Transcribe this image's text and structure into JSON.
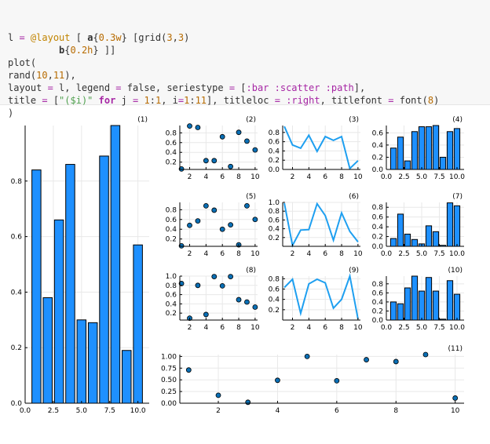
{
  "code": {
    "lines": [
      [
        {
          "t": "l "
        },
        {
          "t": "=",
          "c": "op"
        },
        {
          "t": " "
        },
        {
          "t": "@layout",
          "c": "macro"
        },
        {
          "t": " [ "
        },
        {
          "t": "a",
          "c": "bold"
        },
        {
          "t": "{"
        },
        {
          "t": "0.3w",
          "c": "num"
        },
        {
          "t": "} [grid("
        },
        {
          "t": "3",
          "c": "num"
        },
        {
          "t": ","
        },
        {
          "t": "3",
          "c": "num"
        },
        {
          "t": ")"
        }
      ],
      [
        {
          "t": "         "
        },
        {
          "t": "b",
          "c": "bold"
        },
        {
          "t": "{"
        },
        {
          "t": "0.2h",
          "c": "num"
        },
        {
          "t": "} ]]"
        }
      ],
      [
        {
          "t": "plot("
        }
      ],
      [
        {
          "t": "rand("
        },
        {
          "t": "10",
          "c": "num"
        },
        {
          "t": ","
        },
        {
          "t": "11",
          "c": "num"
        },
        {
          "t": "),"
        }
      ],
      [
        {
          "t": "layout "
        },
        {
          "t": "=",
          "c": "op"
        },
        {
          "t": " l, legend "
        },
        {
          "t": "=",
          "c": "op"
        },
        {
          "t": " false, seriestype "
        },
        {
          "t": "=",
          "c": "op"
        },
        {
          "t": " ["
        },
        {
          "t": ":bar :scatter :path",
          "c": "sym"
        },
        {
          "t": "],"
        }
      ],
      [
        {
          "t": "title "
        },
        {
          "t": "=",
          "c": "op"
        },
        {
          "t": " ["
        },
        {
          "t": "\"($i)\"",
          "c": "str"
        },
        {
          "t": " "
        },
        {
          "t": "for",
          "c": "kw"
        },
        {
          "t": " j "
        },
        {
          "t": "=",
          "c": "op"
        },
        {
          "t": " "
        },
        {
          "t": "1",
          "c": "num"
        },
        {
          "t": ":"
        },
        {
          "t": "1",
          "c": "num"
        },
        {
          "t": ", i"
        },
        {
          "t": "=",
          "c": "op"
        },
        {
          "t": "1",
          "c": "num"
        },
        {
          "t": ":"
        },
        {
          "t": "11",
          "c": "num"
        },
        {
          "t": "], titleloc "
        },
        {
          "t": "=",
          "c": "op"
        },
        {
          "t": " "
        },
        {
          "t": ":right",
          "c": "sym"
        },
        {
          "t": ", titlefont "
        },
        {
          "t": "=",
          "c": "op"
        },
        {
          "t": " font("
        },
        {
          "t": "8",
          "c": "num"
        },
        {
          "t": ")"
        }
      ],
      [
        {
          "t": ")"
        }
      ]
    ]
  },
  "colors": {
    "bar": "#1e90ff",
    "bar_stroke": "#000000",
    "line": "#1e9ff0",
    "marker": "#0a6fb5",
    "axis": "#000000",
    "grid": "#e8e8e8",
    "text": "#000000"
  },
  "chart_data": [
    {
      "title": "(1)",
      "type": "bar",
      "xlim": [
        0,
        11
      ],
      "ylim": [
        0,
        1
      ],
      "xticks": [
        "0.0",
        "2.5",
        "5.0",
        "7.5",
        "10.0"
      ],
      "xtick_values": [
        0,
        2.5,
        5,
        7.5,
        10
      ],
      "yticks": [
        "0.0",
        "0.2",
        "0.4",
        "0.6",
        "0.8"
      ],
      "ytick_values": [
        0,
        0.2,
        0.4,
        0.6,
        0.8
      ],
      "x": [
        1,
        2,
        3,
        4,
        5,
        6,
        7,
        8,
        9,
        10
      ],
      "values": [
        0.84,
        0.38,
        0.66,
        0.86,
        0.3,
        0.29,
        0.89,
        1.0,
        0.19,
        0.57
      ]
    },
    {
      "title": "(2)",
      "type": "scatter",
      "xlim": [
        0.8,
        10.3
      ],
      "ylim": [
        0.05,
        0.95
      ],
      "xticks": [
        "2",
        "4",
        "6",
        "8",
        "10"
      ],
      "xtick_values": [
        2,
        4,
        6,
        8,
        10
      ],
      "yticks": [
        "0.2",
        "0.4",
        "0.6",
        "0.8"
      ],
      "ytick_values": [
        0.2,
        0.4,
        0.6,
        0.8
      ],
      "x": [
        1,
        2,
        3,
        4,
        5,
        6,
        7,
        8,
        9,
        10
      ],
      "values": [
        0.06,
        0.94,
        0.91,
        0.23,
        0.23,
        0.72,
        0.11,
        0.81,
        0.63,
        0.45
      ]
    },
    {
      "title": "(3)",
      "type": "line",
      "xlim": [
        0.8,
        10.3
      ],
      "ylim": [
        0,
        0.95
      ],
      "xticks": [
        "2",
        "4",
        "6",
        "8",
        "10"
      ],
      "xtick_values": [
        2,
        4,
        6,
        8,
        10
      ],
      "yticks": [
        "0.0",
        "0.2",
        "0.4",
        "0.6",
        "0.8"
      ],
      "ytick_values": [
        0,
        0.2,
        0.4,
        0.6,
        0.8
      ],
      "x": [
        1,
        2,
        3,
        4,
        5,
        6,
        7,
        8,
        9,
        10
      ],
      "values": [
        0.93,
        0.53,
        0.46,
        0.74,
        0.39,
        0.71,
        0.63,
        0.71,
        0.02,
        0.19
      ]
    },
    {
      "title": "(4)",
      "type": "bar",
      "xlim": [
        0,
        11
      ],
      "ylim": [
        0,
        0.72
      ],
      "xticks": [
        "0.0",
        "2.5",
        "5.0",
        "7.5",
        "10.0"
      ],
      "xtick_values": [
        0,
        2.5,
        5,
        7.5,
        10
      ],
      "yticks": [
        "0.0",
        "0.2",
        "0.4",
        "0.6"
      ],
      "ytick_values": [
        0,
        0.2,
        0.4,
        0.6
      ],
      "x": [
        1,
        2,
        3,
        4,
        5,
        6,
        7,
        8,
        9,
        10
      ],
      "values": [
        0.35,
        0.53,
        0.14,
        0.62,
        0.7,
        0.7,
        0.72,
        0.2,
        0.62,
        0.67
      ]
    },
    {
      "title": "(5)",
      "type": "scatter",
      "xlim": [
        0.8,
        10.3
      ],
      "ylim": [
        0.05,
        0.95
      ],
      "xticks": [
        "2",
        "4",
        "6",
        "8",
        "10"
      ],
      "xtick_values": [
        2,
        4,
        6,
        8,
        10
      ],
      "yticks": [
        "0.2",
        "0.4",
        "0.6",
        "0.8"
      ],
      "ytick_values": [
        0.2,
        0.4,
        0.6,
        0.8
      ],
      "x": [
        1,
        2,
        3,
        4,
        5,
        6,
        7,
        8,
        9,
        10
      ],
      "values": [
        0.06,
        0.48,
        0.57,
        0.88,
        0.79,
        0.4,
        0.49,
        0.08,
        0.88,
        0.6
      ]
    },
    {
      "title": "(6)",
      "type": "line",
      "xlim": [
        0.8,
        10.3
      ],
      "ylim": [
        0,
        1.0
      ],
      "xticks": [
        "2",
        "4",
        "6",
        "8",
        "10"
      ],
      "xtick_values": [
        2,
        4,
        6,
        8,
        10
      ],
      "yticks": [
        "0.2",
        "0.4",
        "0.6",
        "0.8",
        "1.0"
      ],
      "ytick_values": [
        0.2,
        0.4,
        0.6,
        0.8,
        1.0
      ],
      "x": [
        1,
        2,
        3,
        4,
        5,
        6,
        7,
        8,
        9,
        10
      ],
      "values": [
        0.98,
        0.02,
        0.37,
        0.38,
        0.97,
        0.7,
        0.14,
        0.76,
        0.34,
        0.1
      ]
    },
    {
      "title": "(7)",
      "type": "bar",
      "xlim": [
        0,
        11
      ],
      "ylim": [
        0,
        0.9
      ],
      "xticks": [
        "0.0",
        "2.5",
        "5.0",
        "7.5",
        "10.0"
      ],
      "xtick_values": [
        0,
        2.5,
        5,
        7.5,
        10
      ],
      "yticks": [
        "0.0",
        "0.2",
        "0.4",
        "0.6",
        "0.8"
      ],
      "ytick_values": [
        0,
        0.2,
        0.4,
        0.6,
        0.8
      ],
      "x": [
        1,
        2,
        3,
        4,
        5,
        6,
        7,
        8,
        9,
        10
      ],
      "values": [
        0.16,
        0.66,
        0.25,
        0.14,
        0.05,
        0.42,
        0.3,
        0.02,
        0.89,
        0.83
      ]
    },
    {
      "title": "(8)",
      "type": "scatter",
      "xlim": [
        0.8,
        10.3
      ],
      "ylim": [
        0.05,
        1.0
      ],
      "xticks": [
        "2",
        "4",
        "6",
        "8",
        "10"
      ],
      "xtick_values": [
        2,
        4,
        6,
        8,
        10
      ],
      "yticks": [
        "0.2",
        "0.4",
        "0.6",
        "0.8",
        "1.0"
      ],
      "ytick_values": [
        0.2,
        0.4,
        0.6,
        0.8,
        1.0
      ],
      "x": [
        1,
        2,
        3,
        4,
        5,
        6,
        7,
        8,
        9,
        10
      ],
      "values": [
        0.84,
        0.09,
        0.8,
        0.17,
        0.99,
        0.79,
        0.99,
        0.49,
        0.44,
        0.33
      ]
    },
    {
      "title": "(9)",
      "type": "line",
      "xlim": [
        0.8,
        10.3
      ],
      "ylim": [
        0,
        0.85
      ],
      "xticks": [
        "2",
        "4",
        "6",
        "8",
        "10"
      ],
      "xtick_values": [
        2,
        4,
        6,
        8,
        10
      ],
      "yticks": [
        "0.2",
        "0.4",
        "0.6",
        "0.8"
      ],
      "ytick_values": [
        0.2,
        0.4,
        0.6,
        0.8
      ],
      "x": [
        1,
        2,
        3,
        4,
        5,
        6,
        7,
        8,
        9,
        10
      ],
      "values": [
        0.63,
        0.79,
        0.13,
        0.7,
        0.79,
        0.72,
        0.23,
        0.4,
        0.85,
        0.02
      ]
    },
    {
      "title": "(10)",
      "type": "bar",
      "xlim": [
        0,
        11
      ],
      "ylim": [
        0,
        0.97
      ],
      "xticks": [
        "0.0",
        "2.5",
        "5.0",
        "7.5",
        "10.0"
      ],
      "xtick_values": [
        0,
        2.5,
        5,
        7.5,
        10
      ],
      "yticks": [
        "0.0",
        "0.2",
        "0.4",
        "0.6",
        "0.8"
      ],
      "ytick_values": [
        0,
        0.2,
        0.4,
        0.6,
        0.8
      ],
      "x": [
        1,
        2,
        3,
        4,
        5,
        6,
        7,
        8,
        9,
        10
      ],
      "values": [
        0.4,
        0.36,
        0.71,
        0.97,
        0.64,
        0.94,
        0.64,
        0.02,
        0.87,
        0.57
      ]
    },
    {
      "title": "(11)",
      "type": "scatter",
      "xlim": [
        0.7,
        10.3
      ],
      "ylim": [
        0,
        1.04
      ],
      "xticks": [
        "2",
        "4",
        "6",
        "8",
        "10"
      ],
      "xtick_values": [
        2,
        4,
        6,
        8,
        10
      ],
      "yticks": [
        "0.00",
        "0.25",
        "0.50",
        "0.75",
        "1.00"
      ],
      "ytick_values": [
        0,
        0.25,
        0.5,
        0.75,
        1.0
      ],
      "x": [
        1,
        2,
        3,
        4,
        5,
        6,
        7,
        8,
        9,
        10
      ],
      "values": [
        0.71,
        0.17,
        0.02,
        0.49,
        1.0,
        0.48,
        0.93,
        0.89,
        1.04,
        0.11
      ]
    }
  ]
}
